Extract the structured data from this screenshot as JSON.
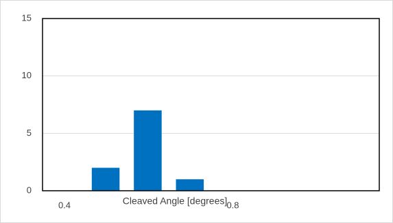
{
  "chart_data": {
    "type": "bar",
    "x": [
      0.45,
      0.55,
      0.65,
      0.75
    ],
    "values": [
      0,
      2,
      7,
      1
    ],
    "xlabel": "Cleaved Angle [degrees]",
    "ylabel": "",
    "title": "",
    "ylim": [
      0,
      15
    ],
    "xlim": [
      0.4,
      1.2
    ],
    "y_ticks": [
      0,
      5,
      10,
      15
    ],
    "x_tick_labels": [
      "0.4",
      "0.8"
    ],
    "grid": true,
    "bar_color": "#0070c0",
    "legend": "none"
  }
}
